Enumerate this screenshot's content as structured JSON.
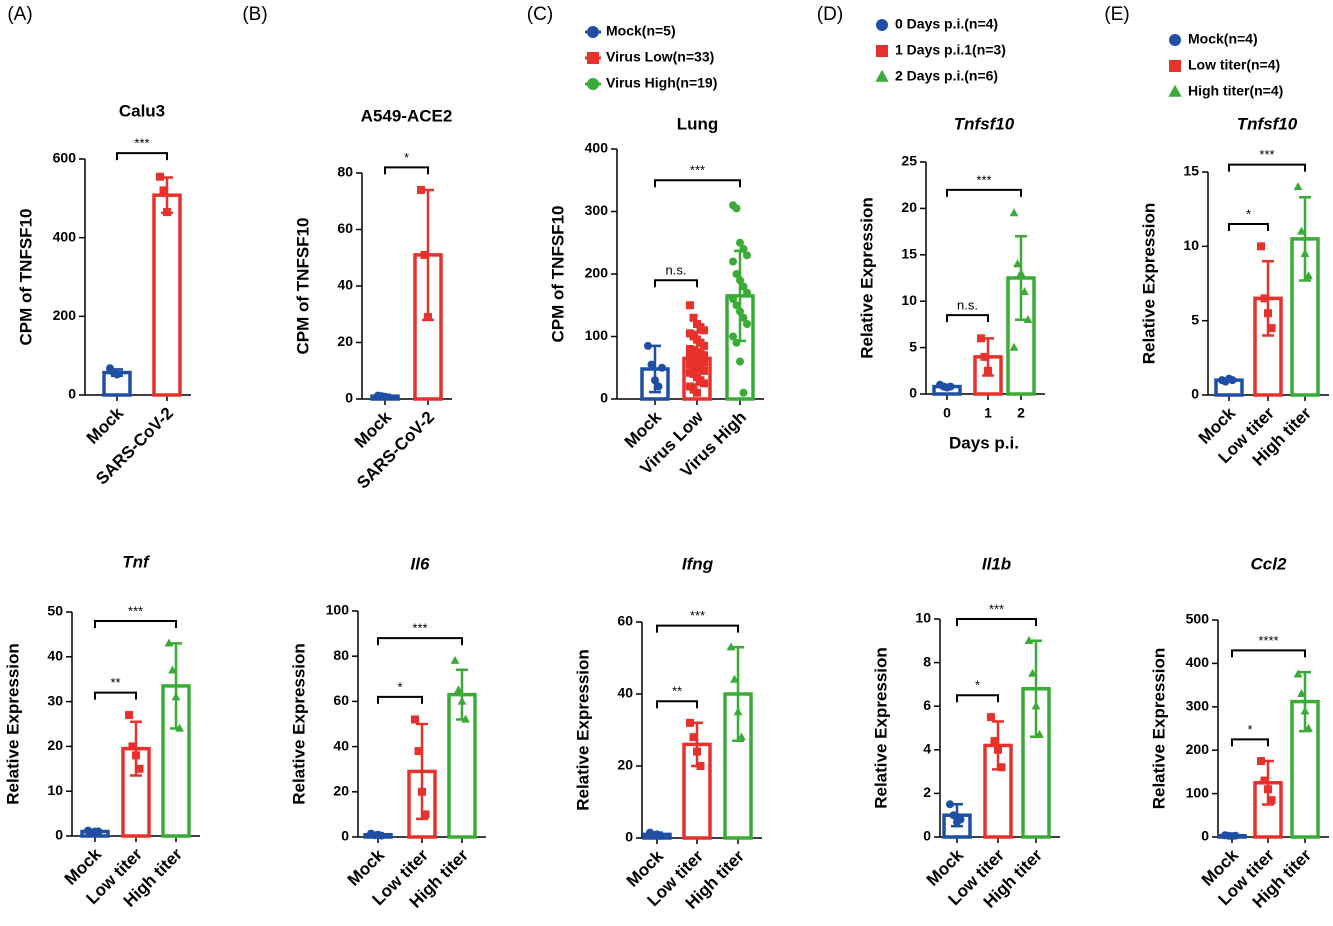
{
  "chart_data": [
    {
      "type": "bar",
      "panel": "(A)",
      "title": "Calu3",
      "ylabel": "CPM of TNFSF10",
      "categories": [
        "Mock",
        "SARS-CoV-2"
      ],
      "colors": [
        "#1f4fa3",
        "#e8312b"
      ],
      "markers": [
        "circle",
        "square"
      ],
      "values": [
        57,
        508
      ],
      "errors": [
        8,
        45
      ],
      "points": [
        [
          68,
          58,
          52
        ],
        [
          555,
          520,
          465
        ]
      ],
      "ylim": [
        0,
        600
      ],
      "yticks": [
        0,
        200,
        400,
        600
      ],
      "significance": [
        {
          "from": 0,
          "to": 1,
          "label": "***"
        }
      ]
    },
    {
      "type": "bar",
      "panel": "(B)",
      "title": "A549-ACE2",
      "ylabel": "CPM of TNFSF10",
      "categories": [
        "Mock",
        "SARS-CoV-2"
      ],
      "colors": [
        "#1f4fa3",
        "#e8312b"
      ],
      "markers": [
        "circle",
        "square"
      ],
      "values": [
        1,
        51
      ],
      "errors": [
        0.5,
        23
      ],
      "points": [
        [
          1.2,
          1,
          0.8
        ],
        [
          74,
          51,
          29
        ]
      ],
      "ylim": [
        0,
        80
      ],
      "yticks": [
        0,
        20,
        40,
        60,
        80
      ],
      "significance": [
        {
          "from": 0,
          "to": 1,
          "label": "*"
        }
      ]
    },
    {
      "type": "bar",
      "panel": "(C)",
      "title": "Lung",
      "ylabel": "CPM of TNFSF10",
      "categories": [
        "Mock",
        "Virus Low",
        "Virus High"
      ],
      "colors": [
        "#1f4fa3",
        "#e8312b",
        "#3aab36"
      ],
      "markers": [
        "circle",
        "square",
        "circle"
      ],
      "legend": [
        "Mock(n=5)",
        "Virus Low(n=33)",
        "Virus High(n=19)"
      ],
      "values": [
        48,
        65,
        165
      ],
      "errors": [
        37,
        42,
        72
      ],
      "points": [
        [
          85,
          55,
          30,
          20,
          50
        ],
        [
          150,
          130,
          120,
          115,
          110,
          105,
          100,
          95,
          90,
          85,
          80,
          78,
          75,
          72,
          70,
          68,
          65,
          62,
          60,
          58,
          55,
          52,
          50,
          48,
          45,
          42,
          40,
          35,
          30,
          25,
          20,
          15,
          10
        ],
        [
          310,
          305,
          250,
          240,
          230,
          220,
          200,
          190,
          180,
          170,
          160,
          150,
          140,
          130,
          120,
          100,
          90,
          60,
          10
        ]
      ],
      "ylim": [
        0,
        400
      ],
      "yticks": [
        0,
        100,
        200,
        300,
        400
      ],
      "significance": [
        {
          "from": 0,
          "to": 1,
          "label": "n.s."
        },
        {
          "from": 0,
          "to": 2,
          "label": "***"
        }
      ]
    },
    {
      "type": "bar",
      "panel": "(D)",
      "title": "Tnfsf10",
      "italic": true,
      "ylabel": "Relative Expression",
      "xlabel": "Days p.i.",
      "categories": [
        "0",
        "1",
        "2"
      ],
      "colors": [
        "#1f4fa3",
        "#e8312b",
        "#3aab36"
      ],
      "markers": [
        "circle",
        "square",
        "triangle"
      ],
      "legend": [
        "0 Days p.i.(n=4)",
        "1 Days p.i.1(n=3)",
        "2 Days p.i.(n=6)"
      ],
      "values": [
        0.8,
        4,
        12.5
      ],
      "errors": [
        0.2,
        2,
        4.5
      ],
      "points": [
        [
          1,
          0.8,
          0.7,
          0.8
        ],
        [
          6,
          4,
          2.5
        ],
        [
          19.5,
          14,
          13,
          11,
          8,
          5
        ]
      ],
      "ylim": [
        0,
        25
      ],
      "yticks": [
        0,
        5,
        10,
        15,
        20,
        25
      ],
      "significance": [
        {
          "from": 0,
          "to": 1,
          "label": "n.s."
        },
        {
          "from": 0,
          "to": 2,
          "label": "***"
        }
      ]
    },
    {
      "type": "bar",
      "panel": "(E)",
      "title": "Tnfsf10",
      "italic": true,
      "ylabel": "Relative Expression",
      "categories": [
        "Mock",
        "Low titer",
        "High titer"
      ],
      "colors": [
        "#1f4fa3",
        "#e8312b",
        "#3aab36"
      ],
      "markers": [
        "circle",
        "square",
        "triangle"
      ],
      "legend": [
        "Mock(n=4)",
        "Low titer(n=4)",
        "High titer(n=4)"
      ],
      "values": [
        1,
        6.5,
        10.5
      ],
      "errors": [
        0.1,
        2.5,
        2.8
      ],
      "points": [
        [
          1,
          0.9,
          1.1,
          1
        ],
        [
          10,
          6.5,
          5.5,
          4.5
        ],
        [
          14,
          11,
          9.5,
          8
        ]
      ],
      "ylim": [
        0,
        15
      ],
      "yticks": [
        0,
        5,
        10,
        15
      ],
      "significance": [
        {
          "from": 0,
          "to": 1,
          "label": "*"
        },
        {
          "from": 0,
          "to": 2,
          "label": "***"
        }
      ]
    },
    {
      "type": "bar",
      "title": "Tnf",
      "italic": true,
      "ylabel": "Relative Expression",
      "categories": [
        "Mock",
        "Low titer",
        "High titer"
      ],
      "colors": [
        "#1f4fa3",
        "#e8312b",
        "#3aab36"
      ],
      "markers": [
        "circle",
        "square",
        "triangle"
      ],
      "values": [
        1,
        19.5,
        33.5
      ],
      "errors": [
        0.3,
        6,
        9.5
      ],
      "points": [
        [
          1.2,
          0.8,
          1,
          1
        ],
        [
          27,
          20,
          18,
          15
        ],
        [
          43,
          37,
          31,
          24
        ]
      ],
      "ylim": [
        0,
        50
      ],
      "yticks": [
        0,
        10,
        20,
        30,
        40,
        50
      ],
      "significance": [
        {
          "from": 0,
          "to": 1,
          "label": "**"
        },
        {
          "from": 0,
          "to": 2,
          "label": "***"
        }
      ]
    },
    {
      "type": "bar",
      "title": "Il6",
      "italic": true,
      "ylabel": "Relative Expression",
      "categories": [
        "Mock",
        "Low titer",
        "High titer"
      ],
      "colors": [
        "#1f4fa3",
        "#e8312b",
        "#3aab36"
      ],
      "markers": [
        "circle",
        "square",
        "triangle"
      ],
      "values": [
        1,
        29,
        63
      ],
      "errors": [
        0.5,
        21,
        11
      ],
      "points": [
        [
          1.5,
          0.8,
          1,
          0.6
        ],
        [
          52,
          38,
          20,
          10
        ],
        [
          78,
          65,
          60,
          52
        ]
      ],
      "ylim": [
        0,
        100
      ],
      "yticks": [
        0,
        20,
        40,
        60,
        80,
        100
      ],
      "significance": [
        {
          "from": 0,
          "to": 1,
          "label": "*"
        },
        {
          "from": 0,
          "to": 2,
          "label": "***"
        }
      ]
    },
    {
      "type": "bar",
      "title": "Ifng",
      "italic": true,
      "ylabel": "Relative Expression",
      "categories": [
        "Mock",
        "Low titer",
        "High titer"
      ],
      "colors": [
        "#1f4fa3",
        "#e8312b",
        "#3aab36"
      ],
      "markers": [
        "circle",
        "square",
        "triangle"
      ],
      "values": [
        1,
        26,
        40
      ],
      "errors": [
        0.5,
        6,
        13
      ],
      "points": [
        [
          1.5,
          0.8,
          1,
          0.6
        ],
        [
          32,
          28,
          24,
          20
        ],
        [
          53,
          44,
          35,
          28
        ]
      ],
      "ylim": [
        0,
        60
      ],
      "yticks": [
        0,
        20,
        40,
        60
      ],
      "significance": [
        {
          "from": 0,
          "to": 1,
          "label": "**"
        },
        {
          "from": 0,
          "to": 2,
          "label": "***"
        }
      ]
    },
    {
      "type": "bar",
      "title": "Il1b",
      "italic": true,
      "ylabel": "Relative Expression",
      "categories": [
        "Mock",
        "Low titer",
        "High titer"
      ],
      "colors": [
        "#1f4fa3",
        "#e8312b",
        "#3aab36"
      ],
      "markers": [
        "circle",
        "square",
        "triangle"
      ],
      "values": [
        1,
        4.2,
        6.8
      ],
      "errors": [
        0.5,
        1.1,
        2.2
      ],
      "points": [
        [
          1.5,
          1,
          0.7,
          0.8
        ],
        [
          5.5,
          4.4,
          4,
          3.2
        ],
        [
          9,
          7.5,
          6,
          4.7
        ]
      ],
      "ylim": [
        0,
        10
      ],
      "yticks": [
        0,
        2,
        4,
        6,
        8,
        10
      ],
      "significance": [
        {
          "from": 0,
          "to": 1,
          "label": "*"
        },
        {
          "from": 0,
          "to": 2,
          "label": "***"
        }
      ]
    },
    {
      "type": "bar",
      "title": "Ccl2",
      "italic": true,
      "ylabel": "Relative Expression",
      "categories": [
        "Mock",
        "Low titer",
        "High titer"
      ],
      "colors": [
        "#1f4fa3",
        "#e8312b",
        "#3aab36"
      ],
      "markers": [
        "circle",
        "square",
        "triangle"
      ],
      "values": [
        3,
        125,
        312
      ],
      "errors": [
        1,
        50,
        68
      ],
      "points": [
        [
          4,
          3,
          2,
          3
        ],
        [
          175,
          130,
          110,
          85
        ],
        [
          375,
          330,
          290,
          250
        ]
      ],
      "ylim": [
        0,
        500
      ],
      "yticks": [
        0,
        100,
        200,
        300,
        400,
        500
      ],
      "significance": [
        {
          "from": 0,
          "to": 1,
          "label": "*"
        },
        {
          "from": 0,
          "to": 2,
          "label": "****"
        }
      ]
    }
  ]
}
